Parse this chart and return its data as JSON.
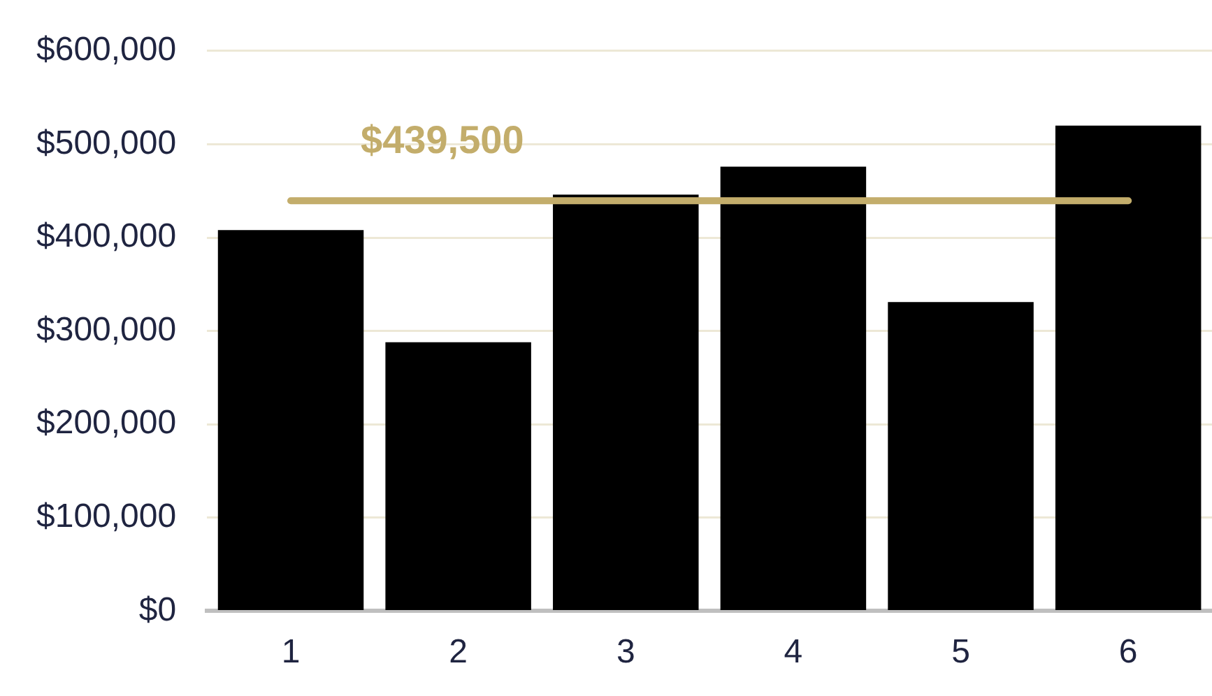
{
  "chart_data": {
    "type": "bar",
    "categories": [
      "1",
      "2",
      "3",
      "4",
      "5",
      "6"
    ],
    "values": [
      408000,
      288000,
      446000,
      476000,
      331000,
      520000
    ],
    "color": "#000000",
    "ylim": [
      0,
      600000
    ],
    "yticks": [
      {
        "value": 0,
        "label": "$0"
      },
      {
        "value": 100000,
        "label": "$100,000"
      },
      {
        "value": 200000,
        "label": "$200,000"
      },
      {
        "value": 300000,
        "label": "$300,000"
      },
      {
        "value": 400000,
        "label": "$400,000"
      },
      {
        "value": 500000,
        "label": "$500,000"
      },
      {
        "value": 600000,
        "label": "$600,000"
      }
    ],
    "grid": "y",
    "legend": false,
    "ref_lines": [
      {
        "axis": "y",
        "value": 439500,
        "label": "$439,500",
        "color": "#c3ad6b"
      }
    ]
  }
}
